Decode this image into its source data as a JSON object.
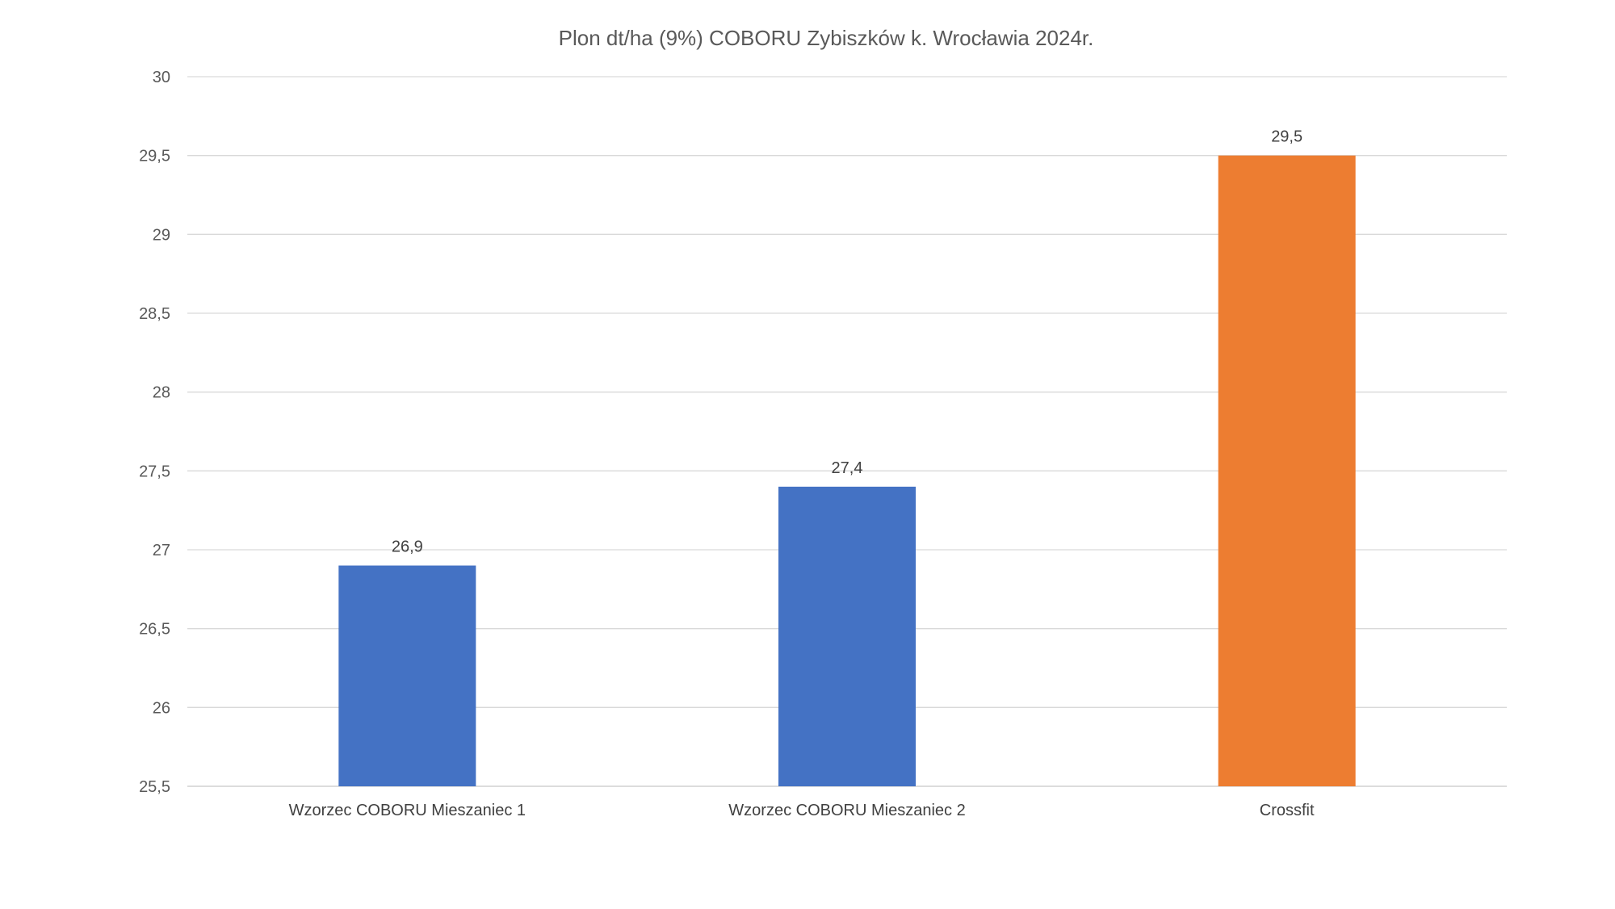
{
  "chart_data": {
    "type": "bar",
    "title": "Plon dt/ha (9%) COBORU Zybiszków k. Wrocławia 2024r.",
    "xlabel": "",
    "ylabel": "",
    "categories": [
      "Wzorzec COBORU Mieszaniec 1",
      "Wzorzec COBORU Mieszaniec 2",
      "Crossfit"
    ],
    "values": [
      26.9,
      27.4,
      29.5
    ],
    "value_labels": [
      "26,9",
      "27,4",
      "29,5"
    ],
    "bar_colors": [
      "#4472C4",
      "#4472C4",
      "#ED7D31"
    ],
    "ylim": [
      25.5,
      30
    ],
    "yticks": [
      25.5,
      26,
      26.5,
      27,
      27.5,
      28,
      28.5,
      29,
      29.5,
      30
    ],
    "ytick_labels": [
      "25,5",
      "26",
      "26,5",
      "27",
      "27,5",
      "28",
      "28,5",
      "29",
      "29,5",
      "30"
    ],
    "grid": true,
    "legend": "none"
  }
}
